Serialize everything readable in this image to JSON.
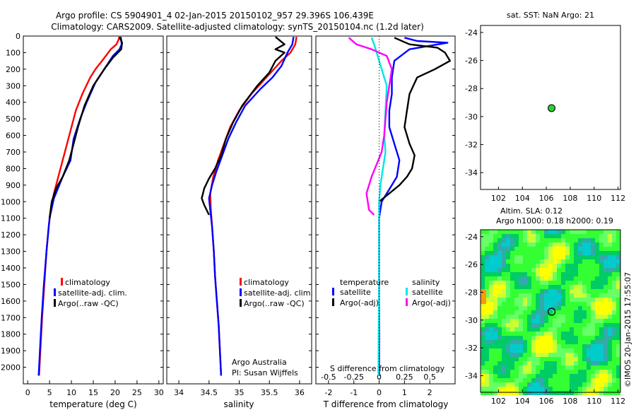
{
  "header": {
    "title_line1": "Argo profile: CS 5904901_4 02-Jan-2015 20150102_957 29.396S 106.439E",
    "title_line2": "Climatology: CARS2009. Satellite-adjusted climatology: synTS_20150104.nc (1.2d later)"
  },
  "colors": {
    "climatology": "#ff0000",
    "satellite": "#0000ff",
    "argo": "#000000",
    "s_satellite": "#00e6e6",
    "s_argo": "#ff00ff",
    "float_marker": "#33cc33"
  },
  "chart_data": [
    {
      "id": "temperature",
      "type": "line",
      "xlabel": "temperature (deg C)",
      "xlim": [
        -1,
        31
      ],
      "xticks": [
        "0",
        "5",
        "10",
        "15",
        "20",
        "25",
        "30"
      ],
      "ylim": [
        0,
        2100
      ],
      "yticks": [
        "0",
        "100",
        "200",
        "300",
        "400",
        "500",
        "600",
        "700",
        "800",
        "900",
        "1000",
        "1100",
        "1200",
        "1300",
        "1400",
        "1500",
        "1600",
        "1700",
        "1800",
        "1900",
        "2000"
      ],
      "legend": [
        "climatology",
        "satellite-adj. clim.",
        "Argo(..raw -QC)"
      ],
      "series": [
        {
          "name": "climatology",
          "points": [
            [
              21,
              5
            ],
            [
              20.8,
              20
            ],
            [
              20.3,
              50
            ],
            [
              19,
              80
            ],
            [
              17,
              150
            ],
            [
              15.5,
              200
            ],
            [
              14.3,
              250
            ],
            [
              12.5,
              350
            ],
            [
              11,
              450
            ],
            [
              10,
              550
            ],
            [
              9,
              650
            ],
            [
              8,
              750
            ],
            [
              7,
              850
            ],
            [
              6,
              950
            ],
            [
              5.3,
              1050
            ],
            [
              4.8,
              1150
            ],
            [
              4.3,
              1300
            ],
            [
              3.8,
              1500
            ],
            [
              3.3,
              1700
            ],
            [
              2.9,
              1900
            ],
            [
              2.6,
              2050
            ]
          ]
        },
        {
          "name": "satellite-adj. clim.",
          "points": [
            [
              21.3,
              5
            ],
            [
              21.5,
              50
            ],
            [
              21,
              80
            ],
            [
              19.5,
              120
            ],
            [
              17.5,
              200
            ],
            [
              15.5,
              280
            ],
            [
              13.5,
              400
            ],
            [
              12,
              500
            ],
            [
              10.5,
              620
            ],
            [
              9.8,
              750
            ],
            [
              8,
              850
            ],
            [
              6,
              980
            ],
            [
              5,
              1100
            ],
            [
              4.3,
              1300
            ],
            [
              3.7,
              1500
            ],
            [
              3.2,
              1700
            ],
            [
              2.8,
              1900
            ],
            [
              2.5,
              2050
            ]
          ]
        },
        {
          "name": "Argo(..raw -QC)",
          "points": [
            [
              21,
              5
            ],
            [
              21.6,
              40
            ],
            [
              21.4,
              80
            ],
            [
              19.5,
              130
            ],
            [
              17.5,
              200
            ],
            [
              15,
              300
            ],
            [
              13,
              420
            ],
            [
              11.5,
              550
            ],
            [
              10.5,
              650
            ],
            [
              9.5,
              750
            ],
            [
              8,
              850
            ],
            [
              6.5,
              920
            ],
            [
              5.5,
              1000
            ],
            [
              5,
              1100
            ]
          ]
        }
      ]
    },
    {
      "id": "salinity",
      "type": "line",
      "xlabel": "salinity",
      "xlim": [
        33.8,
        36.2
      ],
      "xticks": [
        "34",
        "34.5",
        "35",
        "35.5",
        "36"
      ],
      "ylim": [
        0,
        2100
      ],
      "legend": [
        "climatology",
        "satellite-adj. clim.",
        "Argo(..raw -QC)"
      ],
      "annotation_line1": "Argo Australia",
      "annotation_line2": "PI: Susan Wijffels",
      "series": [
        {
          "name": "climatology",
          "points": [
            [
              35.95,
              5
            ],
            [
              35.93,
              50
            ],
            [
              35.85,
              100
            ],
            [
              35.7,
              150
            ],
            [
              35.45,
              250
            ],
            [
              35.2,
              350
            ],
            [
              35,
              450
            ],
            [
              34.85,
              550
            ],
            [
              34.75,
              650
            ],
            [
              34.65,
              750
            ],
            [
              34.57,
              850
            ],
            [
              34.52,
              950
            ],
            [
              34.53,
              1050
            ],
            [
              34.55,
              1150
            ],
            [
              34.58,
              1300
            ],
            [
              34.6,
              1450
            ],
            [
              34.63,
              1600
            ],
            [
              34.66,
              1750
            ],
            [
              34.68,
              1900
            ],
            [
              34.7,
              2050
            ]
          ]
        },
        {
          "name": "satellite-adj. clim.",
          "points": [
            [
              35.9,
              5
            ],
            [
              35.88,
              50
            ],
            [
              35.8,
              100
            ],
            [
              35.7,
              180
            ],
            [
              35.55,
              250
            ],
            [
              35.35,
              320
            ],
            [
              35.1,
              420
            ],
            [
              34.95,
              520
            ],
            [
              34.82,
              620
            ],
            [
              34.72,
              720
            ],
            [
              34.62,
              820
            ],
            [
              34.55,
              900
            ],
            [
              34.5,
              980
            ],
            [
              34.52,
              1050
            ],
            [
              34.55,
              1150
            ],
            [
              34.58,
              1300
            ],
            [
              34.6,
              1450
            ],
            [
              34.63,
              1600
            ],
            [
              34.66,
              1750
            ],
            [
              34.68,
              1900
            ],
            [
              34.7,
              2050
            ]
          ]
        },
        {
          "name": "Argo(..raw -QC)",
          "points": [
            [
              35.6,
              5
            ],
            [
              35.75,
              50
            ],
            [
              35.6,
              80
            ],
            [
              35.75,
              100
            ],
            [
              35.6,
              150
            ],
            [
              35.5,
              220
            ],
            [
              35.3,
              300
            ],
            [
              35.05,
              420
            ],
            [
              34.9,
              520
            ],
            [
              34.78,
              620
            ],
            [
              34.7,
              720
            ],
            [
              34.6,
              800
            ],
            [
              34.5,
              860
            ],
            [
              34.42,
              920
            ],
            [
              34.38,
              980
            ],
            [
              34.42,
              1020
            ],
            [
              34.5,
              1080
            ]
          ]
        }
      ]
    },
    {
      "id": "difference",
      "type": "line",
      "xlabel": "T difference from climatology",
      "xlabel_top": "S difference from climatology",
      "xlim": [
        -2.5,
        3
      ],
      "xticks": [
        "-2",
        "-1",
        "0",
        "1",
        "2"
      ],
      "xticks_top": [
        "-0.5",
        "-0.25",
        "0",
        "0.25",
        "0.5"
      ],
      "legend_t_title": "temperature",
      "legend_s_title": "salinity",
      "legend": [
        "satellite",
        "Argo(-adj)",
        "satellite",
        "Argo(-adj)"
      ],
      "series": [
        {
          "name": "temperature satellite",
          "points": [
            [
              1,
              10
            ],
            [
              1.5,
              30
            ],
            [
              2.7,
              40
            ],
            [
              1.2,
              80
            ],
            [
              0.6,
              150
            ],
            [
              0.5,
              250
            ],
            [
              0.5,
              350
            ],
            [
              0.4,
              450
            ],
            [
              0.4,
              550
            ],
            [
              0.6,
              650
            ],
            [
              0.8,
              750
            ],
            [
              0.7,
              850
            ],
            [
              0.5,
              900
            ],
            [
              0.3,
              950
            ],
            [
              0.1,
              1000
            ],
            [
              0,
              1100
            ],
            [
              0,
              1300
            ],
            [
              0,
              1600
            ],
            [
              0,
              1900
            ],
            [
              0,
              2050
            ]
          ]
        },
        {
          "name": "temperature Argo(-adj)",
          "points": [
            [
              0.6,
              10
            ],
            [
              1.2,
              50
            ],
            [
              2.3,
              70
            ],
            [
              2.6,
              100
            ],
            [
              2.8,
              150
            ],
            [
              2.2,
              200
            ],
            [
              1.5,
              250
            ],
            [
              1.2,
              350
            ],
            [
              1.1,
              450
            ],
            [
              1,
              550
            ],
            [
              1.2,
              650
            ],
            [
              1.4,
              720
            ],
            [
              1.3,
              800
            ],
            [
              1.1,
              850
            ],
            [
              0.8,
              900
            ],
            [
              0.4,
              950
            ],
            [
              0,
              1000
            ]
          ]
        },
        {
          "name": "salinity satellite",
          "points": [
            [
              -0.3,
              10
            ],
            [
              -0.2,
              50
            ],
            [
              -0.1,
              100
            ],
            [
              0.1,
              200
            ],
            [
              0.3,
              300
            ],
            [
              0.25,
              450
            ],
            [
              0.2,
              600
            ],
            [
              0.25,
              700
            ],
            [
              0.15,
              800
            ],
            [
              0.05,
              900
            ],
            [
              0,
              1000
            ],
            [
              0,
              1200
            ],
            [
              0,
              1500
            ],
            [
              -0.02,
              1800
            ],
            [
              -0.03,
              2050
            ]
          ]
        },
        {
          "name": "salinity Argo(-adj)",
          "points": [
            [
              -1.2,
              10
            ],
            [
              -0.9,
              50
            ],
            [
              -0.3,
              80
            ],
            [
              0.3,
              120
            ],
            [
              0.5,
              200
            ],
            [
              0.4,
              300
            ],
            [
              0.3,
              400
            ],
            [
              0.25,
              500
            ],
            [
              0.2,
              600
            ],
            [
              0.1,
              700
            ],
            [
              -0.3,
              850
            ],
            [
              -0.5,
              950
            ],
            [
              -0.4,
              1050
            ],
            [
              -0.2,
              1080
            ]
          ]
        }
      ]
    },
    {
      "id": "sst-map",
      "type": "scatter",
      "title": "sat. SST: NaN Argo: 21",
      "xlim": [
        100.5,
        112.2
      ],
      "ylim": [
        -35.2,
        -23.5
      ],
      "xticks": [
        "102",
        "104",
        "106",
        "108",
        "110",
        "112"
      ],
      "yticks": [
        "-24",
        "-26",
        "-28",
        "-30",
        "-32",
        "-34"
      ],
      "float_position": [
        106.44,
        -29.4
      ]
    },
    {
      "id": "sla-map",
      "type": "heatmap",
      "title_line1": "Altim. SLA: 0.12",
      "title_line2": "Argo h1000: 0.18 h2000: 0.19",
      "xlim": [
        100.5,
        112.2
      ],
      "ylim": [
        -35.2,
        -23.5
      ],
      "xticks": [
        "102",
        "104",
        "106",
        "108",
        "110",
        "112"
      ],
      "yticks": [
        "-24",
        "-26",
        "-28",
        "-30",
        "-32",
        "-34"
      ],
      "float_position": [
        106.44,
        -29.4
      ],
      "colors": [
        "#00cc66",
        "#33ff33",
        "#66ff66",
        "#ccff33",
        "#ffff00",
        "#ffcc00",
        "#ff9900",
        "#33aaaa",
        "#00cccc"
      ]
    }
  ],
  "credit": "©IMOS 20-Jan-2015 17:55:07"
}
